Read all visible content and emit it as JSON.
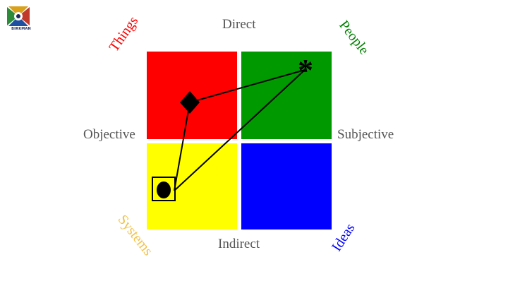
{
  "logo": {
    "text": "BIRKMAN",
    "colors": [
      "#2e8b3a",
      "#d9a01a",
      "#c0392b",
      "#1f4fa0"
    ]
  },
  "axes": {
    "top": "Direct",
    "bottom": "Indirect",
    "left": "Objective",
    "right": "Subjective"
  },
  "corners": {
    "top_left": {
      "label": "Things",
      "color": "#ff0000"
    },
    "top_right": {
      "label": "People",
      "color": "#008000"
    },
    "bottom_left": {
      "label": "Systems",
      "color": "#f2c24b"
    },
    "bottom_right": {
      "label": "Ideas",
      "color": "#0000ff"
    }
  },
  "quadrants": {
    "top_left": "#ff0000",
    "top_right": "#009900",
    "bottom_left": "#ffff00",
    "bottom_right": "#0000ff"
  },
  "markers": {
    "interests": "*",
    "usual_style": "diamond",
    "needs": "circle-in-square"
  }
}
